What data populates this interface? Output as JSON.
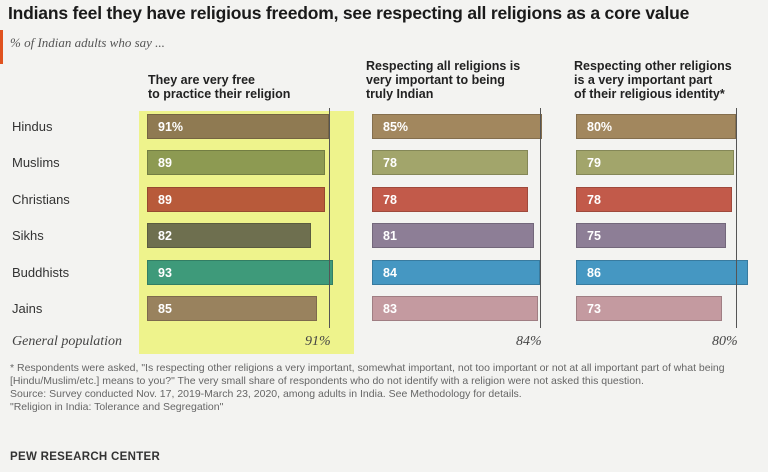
{
  "header": {
    "title": "Indians feel they have religious freedom, see respecting all religions as a core value",
    "subtitle": "% of Indian adults who say ..."
  },
  "chart_data": {
    "type": "bar",
    "categories": [
      "Hindus",
      "Muslims",
      "Christians",
      "Sikhs",
      "Buddhists",
      "Jains"
    ],
    "category_colors": [
      "#8f7a52",
      "#8d9a52",
      "#b85a3a",
      "#6e6f4f",
      "#3e9a7a",
      "#99825e"
    ],
    "general_label": "General population",
    "panels": [
      {
        "title": "They are very free to practice their religion",
        "title_lines": [
          "They are very free",
          "to practice their religion"
        ],
        "highlighted": true,
        "values": [
          91,
          89,
          89,
          82,
          93,
          85
        ],
        "labels": [
          "91%",
          "89",
          "89",
          "82",
          "93",
          "85"
        ],
        "colors": [
          "#8f7a52",
          "#8d9a52",
          "#b85a3a",
          "#6e6f4f",
          "#3e9a7a",
          "#99825e"
        ],
        "general_population": 91,
        "general_label": "91%"
      },
      {
        "title": "Respecting all religions is very important to being truly Indian",
        "title_lines": [
          "Respecting all religions is",
          "very important to being",
          "truly Indian"
        ],
        "highlighted": false,
        "values": [
          85,
          78,
          78,
          81,
          84,
          83
        ],
        "labels": [
          "85%",
          "78",
          "78",
          "81",
          "84",
          "83"
        ],
        "colors": [
          "#a2875e",
          "#a2a56b",
          "#c25a4a",
          "#8d7e96",
          "#4597c2",
          "#c49aa0"
        ],
        "general_population": 84,
        "general_label": "84%"
      },
      {
        "title": "Respecting other religions is a very important part of their religious identity*",
        "title_lines": [
          "Respecting other religions",
          "is a very important part",
          "of their religious identity*"
        ],
        "highlighted": false,
        "values": [
          80,
          79,
          78,
          75,
          86,
          73
        ],
        "labels": [
          "80%",
          "79",
          "78",
          "75",
          "86",
          "73"
        ],
        "colors": [
          "#a2875e",
          "#a2a56b",
          "#c25a4a",
          "#8d7e96",
          "#4597c2",
          "#c49aa0"
        ],
        "general_population": 80,
        "general_label": "80%"
      }
    ]
  },
  "footer": {
    "footnote": "* Respondents were asked, \"Is respecting other religions a very important, somewhat important, not too important or not at all important part of what being [Hindu/Muslim/etc.] means to you?\" The very small share of respondents who do not identify with a religion were not asked this question.",
    "source": "Source: Survey conducted Nov. 17, 2019-March 23, 2020, among adults in India. See Methodology for details.",
    "report": "\"Religion in India: Tolerance and Segregation\"",
    "brand": "PEW RESEARCH CENTER"
  }
}
